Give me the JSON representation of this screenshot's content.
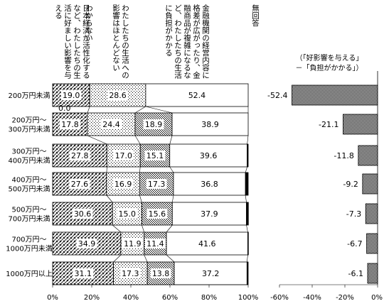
{
  "chart_data": {
    "type": "bar",
    "stacked": true,
    "orientation": "horizontal",
    "categories": [
      "200万円未満",
      "200万円～300万円未満",
      "300万円～400万円未満",
      "400万円～500万円未満",
      "500万円～700万円未満",
      "700万円～1000万円未満",
      "1000万円以上"
    ],
    "category_lines": [
      [
        "200万円未満"
      ],
      [
        "200万円～",
        "300万円未満"
      ],
      [
        "300万円～",
        "400万円未満"
      ],
      [
        "400万円～",
        "500万円未満"
      ],
      [
        "500万円～",
        "700万円未満"
      ],
      [
        "700万円～",
        "1000万円未満"
      ],
      [
        "1000万円以上"
      ]
    ],
    "series": [
      {
        "name": "日本経済が活性化するなど、わたしたちの生活に好ましい影響を与える",
        "pattern": "hatch",
        "values": [
          19.0,
          17.8,
          27.8,
          27.6,
          30.6,
          34.9,
          31.1
        ]
      },
      {
        "name": "わからない",
        "pattern": "none",
        "values": [
          0.0,
          0.0,
          0.0,
          0.0,
          0.0,
          0.0,
          0.0
        ]
      },
      {
        "name": "わたしたちの生活への影響はほとんどない",
        "pattern": "dots",
        "values": [
          28.6,
          24.4,
          17.0,
          16.9,
          15.0,
          11.9,
          17.3
        ]
      },
      {
        "name": "金融機関の経営内容に格差が広がったり、金融商品が複雑になるなど、わたしたちの生活に負担がかかる",
        "pattern": "dense",
        "values": [
          0.0,
          18.9,
          15.1,
          17.3,
          15.6,
          11.4,
          13.8
        ]
      },
      {
        "name": "無回答",
        "pattern": "white",
        "values": [
          52.4,
          38.9,
          39.6,
          36.8,
          37.9,
          41.6,
          37.2
        ]
      },
      {
        "name": "無回答(端)",
        "pattern": "black",
        "values": [
          0.0,
          0.0,
          0.5,
          1.4,
          1.0,
          0.3,
          0.6
        ]
      }
    ],
    "data_labels": [
      [
        "19.0",
        "28.6",
        "52.4"
      ],
      [
        "17.8",
        "24.4",
        "18.9",
        "38.9"
      ],
      [
        "27.8",
        "17.0",
        "15.1",
        "39.6"
      ],
      [
        "27.6",
        "16.9",
        "17.3",
        "36.8"
      ],
      [
        "30.6",
        "15.0",
        "15.6",
        "37.9"
      ],
      [
        "34.9",
        "11.9",
        "11.4",
        "41.6"
      ],
      [
        "31.1",
        "17.3",
        "13.8",
        "37.2"
      ]
    ],
    "extra_label": "0.0",
    "xlim": [
      0,
      100
    ],
    "x_ticks": [
      "0%",
      "20%",
      "40%",
      "60%",
      "80%",
      "100%"
    ],
    "column_headers": [
      "日本経済が活性化するなど、わたしたちの生活に好ましい影響を与える",
      "わからない",
      "わたしたちの生活への影響はほとんどない",
      "金融機関の経営内容に格差が広がったり、金融商品が複雑になるなど、わたしたちの生活に負担がかかる",
      "無回答"
    ],
    "column_header_lines": [
      [
        "日本経済が活性化する",
        "など、わたしたちの生",
        "活に好ましい影響を与",
        "える"
      ],
      [
        "わからない"
      ],
      [
        "わたしたちの生活への",
        "影響はほとんどない"
      ],
      [
        "金融機関の経営内容に",
        "格差が広がったり、金",
        "融商品が複雑になるな",
        "ど、わたしたちの生活",
        "に負担がかかる"
      ],
      [
        "無回答"
      ]
    ],
    "diff_chart": {
      "title_lines": [
        "（「好影響を与える」",
        "－「負担がかかる」）"
      ],
      "values": [
        -52.4,
        -21.1,
        -11.8,
        -9.2,
        -7.3,
        -6.7,
        -6.1
      ],
      "labels": [
        "-52.4",
        "-21.1",
        "-11.8",
        "-9.2",
        "-7.3",
        "-6.7",
        "-6.1"
      ],
      "xlim": [
        -60,
        0
      ],
      "x_ticks": [
        "-60%",
        "-40%",
        "-20%",
        "0%"
      ]
    }
  }
}
